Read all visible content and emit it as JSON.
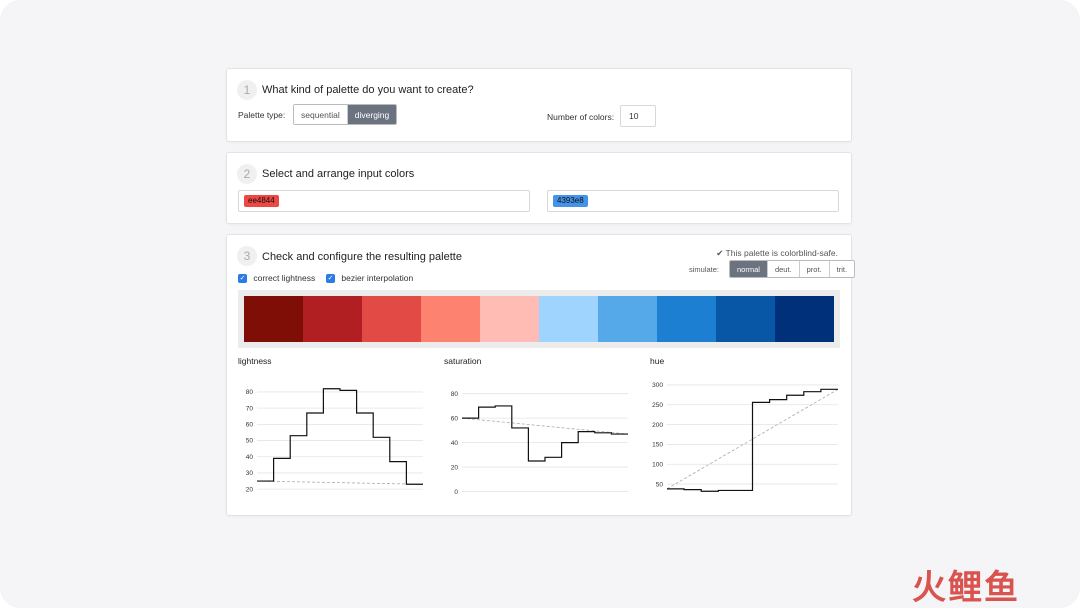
{
  "step1": {
    "number": "1",
    "title": "What kind of palette do you want to create?",
    "palette_type_label": "Palette type:",
    "palette_types": [
      "sequential",
      "diverging"
    ],
    "palette_type_selected": "diverging",
    "num_colors_label": "Number of colors:",
    "num_colors_value": "10"
  },
  "step2": {
    "number": "2",
    "title": "Select and arrange input colors",
    "left_color": "ee4844",
    "left_color_hex": "#ee4844",
    "right_color": "4393e8",
    "right_color_hex": "#4393e8"
  },
  "step3": {
    "number": "3",
    "title": "Check and configure the resulting palette",
    "safe_message": "This palette is colorblind-safe.",
    "simulate_label": "simulate:",
    "simulate_options": [
      "normal",
      "deut.",
      "prot.",
      "trit."
    ],
    "simulate_selected": "normal",
    "correct_lightness_label": "correct lightness",
    "bezier_label": "bezier interpolation",
    "palette": [
      "#7f0e07",
      "#b11f22",
      "#e24a46",
      "#fe8270",
      "#ffbcb4",
      "#9fd4ff",
      "#55a9e8",
      "#1c7fd1",
      "#0856a6",
      "#00307a"
    ]
  },
  "watermark": "火鲤鱼",
  "chart_data": [
    {
      "type": "line",
      "title": "lightness",
      "yticks": [
        20,
        30,
        40,
        50,
        60,
        70,
        80
      ],
      "ylim": [
        17,
        88
      ],
      "values": [
        25,
        39,
        53,
        67,
        82,
        81,
        67,
        52,
        37,
        23
      ],
      "guide": [
        25,
        23
      ],
      "grid": true
    },
    {
      "type": "line",
      "title": "saturation",
      "yticks": [
        0,
        20,
        40,
        60,
        80
      ],
      "ylim": [
        -2,
        92
      ],
      "values": [
        60,
        69,
        70,
        52,
        25,
        28,
        40,
        49,
        48,
        47
      ],
      "guide": [
        60,
        47
      ],
      "grid": true
    },
    {
      "type": "line",
      "title": "hue",
      "yticks": [
        50,
        100,
        150,
        200,
        250,
        300
      ],
      "ylim": [
        25,
        315
      ],
      "values": [
        38,
        36,
        32,
        34,
        34,
        256,
        263,
        274,
        283,
        289
      ],
      "guide": [
        38,
        289
      ],
      "grid": true
    }
  ]
}
